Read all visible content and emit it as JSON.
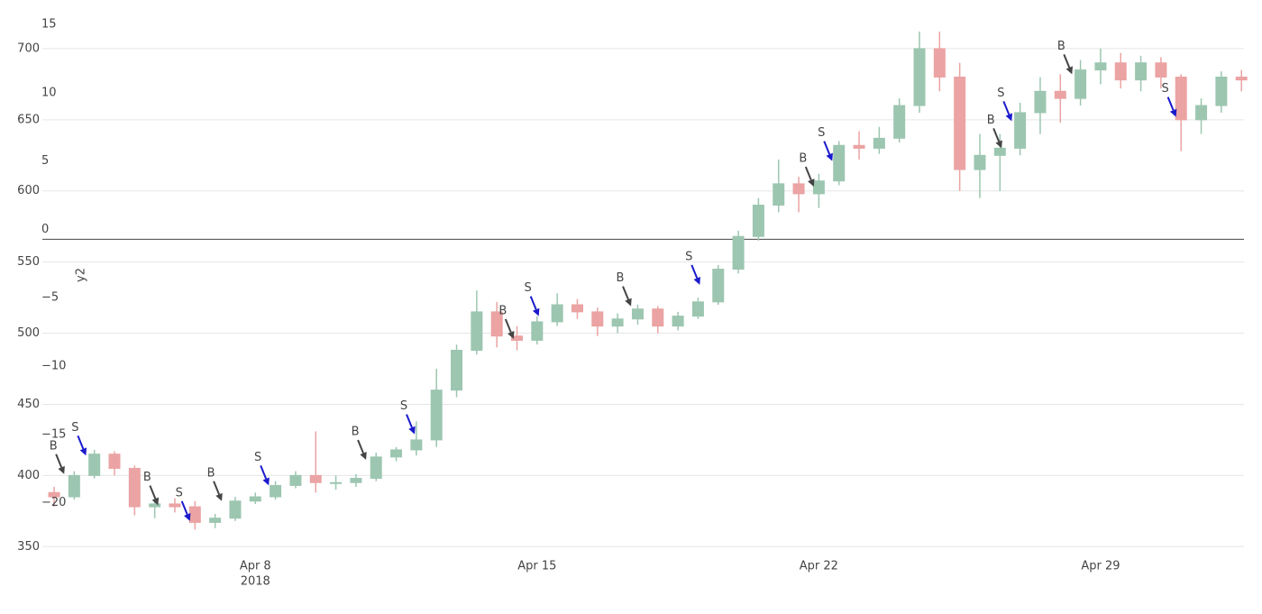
{
  "chart_data": {
    "type": "candlestick",
    "xlim": [
      "2018-04-02 17:00",
      "2018-05-02 13:30"
    ],
    "xticks": [
      {
        "value": "2018-04-08 00:00",
        "label": "Apr 8"
      },
      {
        "value": "2018-04-15 00:00",
        "label": "Apr 15"
      },
      {
        "value": "2018-04-22 00:00",
        "label": "Apr 22"
      },
      {
        "value": "2018-04-29 00:00",
        "label": "Apr 29"
      }
    ],
    "x_year": "2018",
    "ylim": [
      347,
      712
    ],
    "yticks": [
      350,
      400,
      450,
      500,
      550,
      600,
      650,
      700
    ],
    "y2lim": [
      -22.8,
      15.2
    ],
    "y2ticks": [
      {
        "value": -20,
        "label": "−20"
      },
      {
        "value": -15,
        "label": "−15"
      },
      {
        "value": -10,
        "label": "−10"
      },
      {
        "value": -5,
        "label": "−5"
      },
      0,
      5,
      10,
      15
    ],
    "y2_title": "y2",
    "grid": true,
    "increasing_color": "#9cc6b0",
    "decreasing_color": "#eba3a3",
    "x": [
      "2018-04-03 00:00",
      "2018-04-03 12:00",
      "2018-04-04 00:00",
      "2018-04-04 12:00",
      "2018-04-05 00:00",
      "2018-04-05 12:00",
      "2018-04-06 00:00",
      "2018-04-06 12:00",
      "2018-04-07 00:00",
      "2018-04-07 12:00",
      "2018-04-08 00:00",
      "2018-04-08 12:00",
      "2018-04-09 00:00",
      "2018-04-09 12:00",
      "2018-04-10 00:00",
      "2018-04-10 12:00",
      "2018-04-11 00:00",
      "2018-04-11 12:00",
      "2018-04-12 00:00",
      "2018-04-12 12:00",
      "2018-04-13 00:00",
      "2018-04-13 12:00",
      "2018-04-14 00:00",
      "2018-04-14 12:00",
      "2018-04-15 00:00",
      "2018-04-15 12:00",
      "2018-04-16 00:00",
      "2018-04-16 12:00",
      "2018-04-17 00:00",
      "2018-04-17 12:00",
      "2018-04-18 00:00",
      "2018-04-18 12:00",
      "2018-04-19 00:00",
      "2018-04-19 12:00",
      "2018-04-20 00:00",
      "2018-04-20 12:00",
      "2018-04-21 00:00",
      "2018-04-21 12:00",
      "2018-04-22 00:00",
      "2018-04-22 12:00",
      "2018-04-23 00:00",
      "2018-04-23 12:00",
      "2018-04-24 00:00",
      "2018-04-24 12:00",
      "2018-04-25 00:00",
      "2018-04-25 12:00",
      "2018-04-26 00:00",
      "2018-04-26 12:00",
      "2018-04-27 00:00",
      "2018-04-27 12:00",
      "2018-04-28 00:00",
      "2018-04-28 12:00",
      "2018-04-29 00:00",
      "2018-04-29 12:00",
      "2018-04-30 00:00",
      "2018-04-30 12:00",
      "2018-05-01 00:00",
      "2018-05-01 12:00",
      "2018-05-02 00:00",
      "2018-05-02 12:00"
    ],
    "open": [
      388,
      385,
      400,
      415,
      405,
      378,
      380,
      378,
      367,
      370,
      382,
      385,
      393,
      400,
      395,
      395,
      398,
      413,
      418,
      425,
      460,
      488,
      515,
      498,
      495,
      508,
      520,
      515,
      505,
      510,
      517,
      505,
      512,
      522,
      545,
      568,
      590,
      605,
      598,
      607,
      632,
      630,
      637,
      660,
      700,
      680,
      615,
      625,
      630,
      655,
      670,
      665,
      685,
      690,
      678,
      690,
      680,
      650,
      660,
      680
    ],
    "high": [
      392,
      403,
      418,
      417,
      407,
      385,
      384,
      382,
      373,
      385,
      388,
      396,
      403,
      431,
      400,
      401,
      416,
      420,
      438,
      475,
      492,
      530,
      522,
      505,
      512,
      528,
      524,
      518,
      514,
      520,
      519,
      515,
      525,
      548,
      572,
      595,
      622,
      610,
      612,
      635,
      642,
      645,
      665,
      712,
      712,
      690,
      640,
      640,
      662,
      680,
      682,
      692,
      700,
      697,
      695,
      694,
      682,
      665,
      684,
      685
    ],
    "low": [
      378,
      383,
      398,
      400,
      372,
      370,
      374,
      362,
      363,
      368,
      380,
      383,
      391,
      388,
      390,
      392,
      396,
      410,
      414,
      420,
      455,
      485,
      490,
      488,
      492,
      505,
      510,
      498,
      500,
      506,
      500,
      502,
      510,
      520,
      542,
      565,
      585,
      585,
      588,
      604,
      622,
      626,
      634,
      655,
      670,
      600,
      595,
      600,
      625,
      640,
      648,
      660,
      675,
      672,
      670,
      672,
      628,
      640,
      655,
      670
    ],
    "close": [
      385,
      400,
      415,
      405,
      378,
      380,
      378,
      367,
      370,
      382,
      385,
      393,
      400,
      395,
      395,
      398,
      413,
      418,
      425,
      460,
      488,
      515,
      498,
      495,
      508,
      520,
      515,
      505,
      510,
      517,
      505,
      512,
      522,
      545,
      568,
      590,
      605,
      598,
      607,
      632,
      630,
      637,
      660,
      700,
      680,
      615,
      625,
      630,
      655,
      670,
      665,
      685,
      690,
      678,
      690,
      680,
      650,
      660,
      680,
      678
    ],
    "annotations": [
      {
        "x": "2018-04-03 06:00",
        "y": 401,
        "text": "B",
        "arrowcolor": "#444444"
      },
      {
        "x": "2018-04-03 19:00",
        "y": 414,
        "text": "S",
        "arrowcolor": "#1a1acc"
      },
      {
        "x": "2018-04-05 14:00",
        "y": 379,
        "text": "B",
        "arrowcolor": "#444444"
      },
      {
        "x": "2018-04-06 09:00",
        "y": 368,
        "text": "S",
        "arrowcolor": "#1a1acc"
      },
      {
        "x": "2018-04-07 04:00",
        "y": 382,
        "text": "B",
        "arrowcolor": "#444444"
      },
      {
        "x": "2018-04-08 08:00",
        "y": 393,
        "text": "S",
        "arrowcolor": "#1a1acc"
      },
      {
        "x": "2018-04-10 18:00",
        "y": 411,
        "text": "B",
        "arrowcolor": "#444444"
      },
      {
        "x": "2018-04-11 23:00",
        "y": 429,
        "text": "S",
        "arrowcolor": "#1a1acc"
      },
      {
        "x": "2018-04-14 10:00",
        "y": 496,
        "text": "B",
        "arrowcolor": "#444444"
      },
      {
        "x": "2018-04-15 01:00",
        "y": 512,
        "text": "S",
        "arrowcolor": "#1a1acc"
      },
      {
        "x": "2018-04-17 08:00",
        "y": 519,
        "text": "B",
        "arrowcolor": "#444444"
      },
      {
        "x": "2018-04-19 01:00",
        "y": 534,
        "text": "S",
        "arrowcolor": "#1a1acc"
      },
      {
        "x": "2018-04-21 21:00",
        "y": 603,
        "text": "B",
        "arrowcolor": "#444444"
      },
      {
        "x": "2018-04-22 08:00",
        "y": 621,
        "text": "S",
        "arrowcolor": "#1a1acc"
      },
      {
        "x": "2018-04-26 13:00",
        "y": 630,
        "text": "B",
        "arrowcolor": "#444444"
      },
      {
        "x": "2018-04-26 19:00",
        "y": 649,
        "text": "S",
        "arrowcolor": "#1a1acc"
      },
      {
        "x": "2018-04-28 07:00",
        "y": 682,
        "text": "B",
        "arrowcolor": "#444444"
      },
      {
        "x": "2018-04-30 21:00",
        "y": 652,
        "text": "S",
        "arrowcolor": "#1a1acc"
      }
    ]
  }
}
